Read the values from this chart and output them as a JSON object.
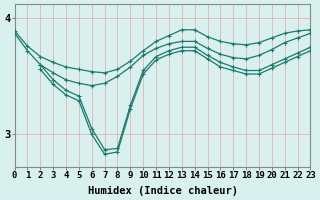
{
  "xlabel": "Humidex (Indice chaleur)",
  "bg_color": "#d8f0ee",
  "line_color": "#1a7a6e",
  "grid_color_v": "#e8b0b0",
  "grid_color_h": "#e8b0b0",
  "yticks": [
    3,
    4
  ],
  "xlim": [
    0,
    23
  ],
  "ylim": [
    2.72,
    4.12
  ],
  "lines": [
    {
      "x": [
        0,
        1,
        2,
        3,
        4,
        5,
        6,
        7,
        8,
        9,
        10,
        11,
        12,
        13,
        14,
        15,
        16,
        17,
        18,
        19,
        20,
        21,
        22,
        23
      ],
      "y": [
        3.89,
        3.76,
        3.67,
        3.62,
        3.58,
        3.56,
        3.54,
        3.53,
        3.56,
        3.63,
        3.72,
        3.8,
        3.85,
        3.9,
        3.9,
        3.84,
        3.8,
        3.78,
        3.77,
        3.79,
        3.83,
        3.87,
        3.89,
        3.9
      ]
    },
    {
      "x": [
        0,
        1,
        2,
        3,
        4,
        5,
        6,
        7,
        8,
        9,
        10,
        11,
        12,
        13,
        14,
        15,
        16,
        17,
        18,
        19,
        20,
        21,
        22,
        23
      ],
      "y": [
        3.87,
        3.72,
        3.6,
        3.53,
        3.47,
        3.44,
        3.42,
        3.44,
        3.5,
        3.58,
        3.68,
        3.74,
        3.78,
        3.8,
        3.8,
        3.74,
        3.69,
        3.66,
        3.65,
        3.68,
        3.73,
        3.79,
        3.83,
        3.87
      ]
    },
    {
      "x": [
        2,
        3,
        4,
        5,
        6,
        7,
        8,
        9,
        10,
        11,
        12,
        13,
        14,
        15,
        16,
        17,
        18,
        19,
        20,
        21,
        22,
        23
      ],
      "y": [
        3.6,
        3.47,
        3.38,
        3.33,
        3.05,
        2.87,
        2.88,
        3.25,
        3.55,
        3.67,
        3.72,
        3.75,
        3.75,
        3.68,
        3.62,
        3.58,
        3.55,
        3.55,
        3.6,
        3.65,
        3.7,
        3.75
      ]
    },
    {
      "x": [
        2,
        3,
        4,
        5,
        6,
        7,
        8,
        9,
        10,
        11,
        12,
        13,
        14,
        15,
        16,
        17,
        18,
        19,
        20,
        21,
        22,
        23
      ],
      "y": [
        3.56,
        3.43,
        3.34,
        3.29,
        3.0,
        2.83,
        2.85,
        3.22,
        3.52,
        3.64,
        3.69,
        3.72,
        3.72,
        3.65,
        3.58,
        3.55,
        3.52,
        3.52,
        3.57,
        3.62,
        3.67,
        3.72
      ]
    }
  ],
  "xtick_labels": [
    "0",
    "1",
    "2",
    "3",
    "4",
    "5",
    "6",
    "7",
    "8",
    "9",
    "10",
    "11",
    "12",
    "13",
    "14",
    "15",
    "16",
    "17",
    "18",
    "19",
    "20",
    "21",
    "22",
    "23"
  ],
  "font_family": "monospace",
  "tick_fontsize": 6.5,
  "label_fontsize": 7.5
}
